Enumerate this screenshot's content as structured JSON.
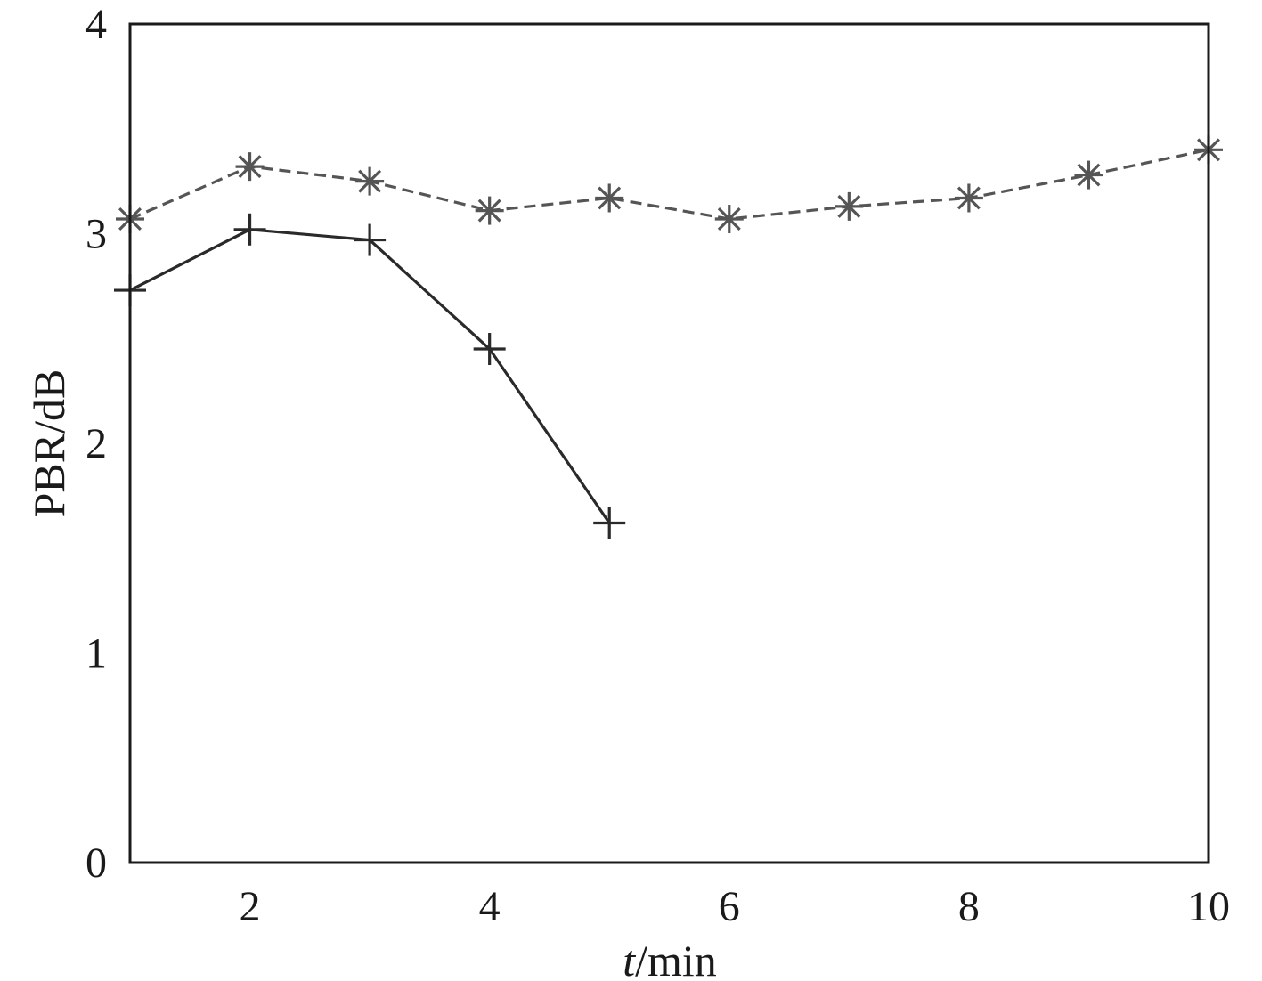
{
  "chart_data": {
    "type": "line",
    "title": "",
    "xlabel_var": "t",
    "xlabel_unit": "/min",
    "ylabel": "PBR/dB",
    "xlim": [
      1,
      10
    ],
    "ylim": [
      0,
      4
    ],
    "x_ticks": [
      2,
      4,
      6,
      8,
      10
    ],
    "y_ticks": [
      0,
      1,
      2,
      3,
      4
    ],
    "grid": false,
    "legend": "none",
    "series": [
      {
        "name": "asterisk-dashed",
        "marker": "asterisk",
        "line_style": "dashed",
        "color": "#555555",
        "x": [
          1,
          2,
          3,
          4,
          5,
          6,
          7,
          8,
          9,
          10
        ],
        "values": [
          3.07,
          3.32,
          3.25,
          3.11,
          3.17,
          3.07,
          3.13,
          3.17,
          3.28,
          3.4
        ]
      },
      {
        "name": "plus-solid",
        "marker": "plus",
        "line_style": "solid",
        "color": "#2a2a2a",
        "x": [
          1,
          2,
          3,
          4,
          5
        ],
        "values": [
          2.73,
          3.02,
          2.97,
          2.45,
          1.62
        ]
      }
    ]
  }
}
